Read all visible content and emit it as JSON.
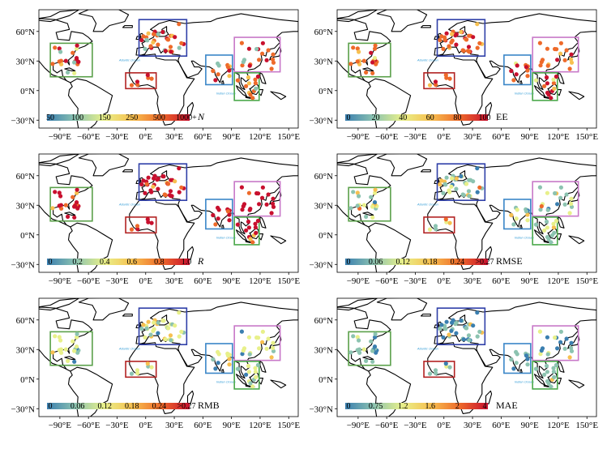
{
  "figure": {
    "lat_ticks": [
      "60°N",
      "30°N",
      "0°N",
      "−30°N"
    ],
    "lon_ticks": [
      "−90°E",
      "−60°E",
      "−30°E",
      "0°E",
      "30°E",
      "60°E",
      "90°E",
      "120°E",
      "150°E"
    ],
    "ocean_labels": [
      "Atlantic Ocean",
      "Indian Ocean"
    ],
    "region_colors": {
      "north_america": "#5aa04a",
      "europe": "#2f3fa8",
      "africa": "#b22222",
      "south_asia": "#3a86c8",
      "east_asia": "#c878c8",
      "southeast_asia": "#4aa84a"
    },
    "panels": [
      {
        "title": "N",
        "title_italic": true,
        "cbar_labels": [
          "50",
          "100",
          "150",
          "250",
          "500",
          "1000+"
        ],
        "palette": "count"
      },
      {
        "title": "EE",
        "title_italic": false,
        "cbar_labels": [
          "0",
          "20",
          "40",
          "60",
          "80",
          "100"
        ],
        "palette": "ee"
      },
      {
        "title": "R",
        "title_italic": true,
        "cbar_labels": [
          "0",
          "0.2",
          "0.4",
          "0.6",
          "0.8",
          "1.0"
        ],
        "palette": "r"
      },
      {
        "title": "RMSE",
        "title_italic": false,
        "cbar_labels": [
          "0",
          "0.06",
          "0.12",
          "0.18",
          "0.24",
          ">0.27"
        ],
        "palette": "rmse"
      },
      {
        "title": "RMB",
        "title_italic": false,
        "cbar_labels": [
          "0",
          "0.06",
          "0.12",
          "0.18",
          "0.24",
          ">0.27"
        ],
        "palette": "rmb"
      },
      {
        "title": "MAE",
        "title_italic": false,
        "cbar_labels": [
          "0",
          "0.75",
          "1.2",
          "1.6",
          "2",
          "4"
        ],
        "palette": "mae"
      }
    ],
    "colorbar_stops": [
      "#3b7fb0",
      "#8cc3b0",
      "#e8f08a",
      "#f7c050",
      "#ee6a2a",
      "#c8102e"
    ]
  }
}
